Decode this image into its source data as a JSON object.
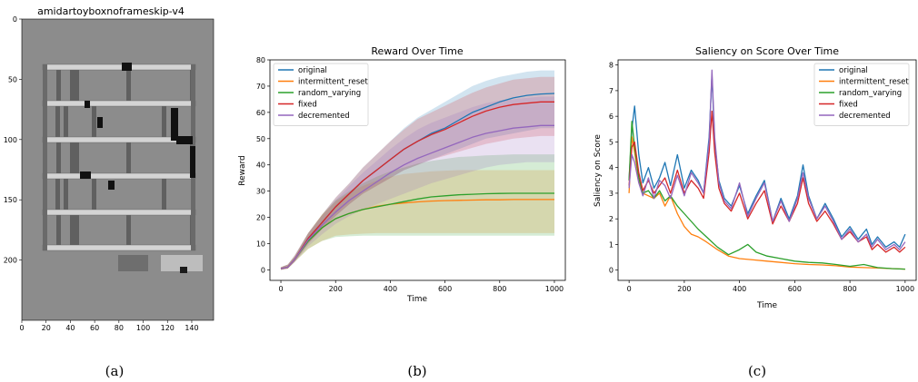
{
  "panel_a": {
    "title": "amidartoyboxnoframeskip-v4",
    "caption": "(a)",
    "xticks": [
      "0",
      "20",
      "40",
      "60",
      "80",
      "100",
      "120",
      "140"
    ],
    "yticks": [
      "0",
      "50",
      "100",
      "150",
      "200"
    ]
  },
  "chart_data": [
    {
      "type": "line",
      "title": "Reward Over Time",
      "caption": "(b)",
      "xlabel": "Time",
      "ylabel": "Reward",
      "xlim": [
        -40,
        1040
      ],
      "ylim": [
        -4,
        80
      ],
      "xticks": [
        0,
        200,
        400,
        600,
        800,
        1000
      ],
      "yticks": [
        0,
        10,
        20,
        30,
        40,
        50,
        60,
        70,
        80
      ],
      "legend_position": "top-left",
      "series": [
        {
          "name": "original",
          "color": "#1f77b4",
          "x": [
            0,
            25,
            50,
            100,
            150,
            200,
            250,
            300,
            350,
            400,
            450,
            500,
            550,
            600,
            650,
            700,
            750,
            800,
            850,
            900,
            950,
            1000
          ],
          "y": [
            0.5,
            1,
            4,
            12,
            18,
            24,
            29,
            34,
            38,
            42,
            46,
            49,
            52,
            54,
            57,
            60,
            62,
            64,
            65.5,
            66.5,
            67,
            67.2
          ],
          "band_low": [
            0,
            0.5,
            3,
            10,
            15.5,
            20.5,
            25,
            29,
            32,
            35,
            38,
            40,
            42,
            44,
            46,
            48,
            50,
            51,
            52,
            53,
            54,
            54
          ],
          "band_high": [
            1,
            2,
            5.5,
            14,
            21,
            27.5,
            33,
            39,
            44,
            49,
            54,
            58,
            61,
            64,
            67,
            70,
            72,
            73.5,
            74.5,
            75.5,
            76,
            76
          ]
        },
        {
          "name": "intermittent_reset",
          "color": "#ff7f0e",
          "x": [
            0,
            25,
            50,
            100,
            150,
            200,
            250,
            300,
            350,
            400,
            450,
            500,
            550,
            600,
            650,
            700,
            750,
            800,
            850,
            900,
            950,
            1000
          ],
          "y": [
            0.5,
            1,
            4,
            11,
            16,
            19.5,
            21.5,
            23,
            24.2,
            25,
            25.5,
            25.9,
            26.2,
            26.4,
            26.5,
            26.6,
            26.7,
            26.7,
            26.8,
            26.8,
            26.8,
            26.8
          ],
          "band_low": [
            0,
            0.5,
            3,
            8,
            11,
            13,
            13.5,
            13.8,
            14,
            14,
            14,
            14,
            14,
            14,
            14,
            14,
            14,
            14,
            14,
            14,
            14,
            14
          ],
          "band_high": [
            1,
            2,
            5,
            14,
            21,
            26,
            29.5,
            32,
            34,
            35.5,
            36.5,
            37,
            37.5,
            37.8,
            38,
            38,
            38,
            38,
            38,
            38,
            38,
            38
          ]
        },
        {
          "name": "random_varying",
          "color": "#2ca02c",
          "x": [
            0,
            25,
            50,
            100,
            150,
            200,
            250,
            300,
            350,
            400,
            450,
            500,
            550,
            600,
            650,
            700,
            750,
            800,
            850,
            900,
            950,
            1000
          ],
          "y": [
            0.5,
            1,
            4,
            11,
            16,
            19.5,
            21.5,
            23,
            24,
            25,
            26,
            27,
            27.8,
            28.2,
            28.6,
            28.8,
            29,
            29.1,
            29.2,
            29.2,
            29.2,
            29.2
          ],
          "band_low": [
            0,
            0.5,
            3,
            8,
            11,
            12.5,
            12.8,
            13,
            13,
            13,
            13,
            13,
            13,
            13,
            13,
            13,
            13,
            13,
            13,
            13,
            13,
            13
          ],
          "band_high": [
            1,
            2,
            5,
            14,
            21,
            26.5,
            30,
            33,
            35.5,
            37.5,
            39,
            40.5,
            41.5,
            42.3,
            43,
            43.3,
            43.6,
            43.8,
            44,
            44,
            44,
            44
          ]
        },
        {
          "name": "fixed",
          "color": "#d62728",
          "x": [
            0,
            25,
            50,
            100,
            150,
            200,
            250,
            300,
            350,
            400,
            450,
            500,
            550,
            600,
            650,
            700,
            750,
            800,
            850,
            900,
            950,
            1000
          ],
          "y": [
            0.5,
            1,
            4,
            12,
            18,
            24,
            29,
            34,
            38,
            42,
            46,
            49,
            51.5,
            53.5,
            56,
            58.5,
            60.5,
            62,
            63,
            63.5,
            64,
            64
          ],
          "band_low": [
            0,
            0.5,
            3,
            10,
            15.5,
            20.5,
            25,
            29,
            32,
            35,
            38,
            40,
            42,
            43.5,
            45,
            46.5,
            48,
            49,
            50,
            50.5,
            51,
            51
          ],
          "band_high": [
            1,
            2,
            5.5,
            14,
            21,
            27.5,
            33,
            39,
            44,
            49,
            53.5,
            57.5,
            60,
            62.5,
            65,
            67.5,
            69.5,
            71,
            72.5,
            73,
            73.5,
            73.5
          ]
        },
        {
          "name": "decremented",
          "color": "#9467bd",
          "x": [
            0,
            25,
            50,
            100,
            150,
            200,
            250,
            300,
            350,
            400,
            450,
            500,
            550,
            600,
            650,
            700,
            750,
            800,
            850,
            900,
            950,
            1000
          ],
          "y": [
            0.5,
            1,
            4,
            11.5,
            17,
            22,
            26.5,
            30,
            33.5,
            37,
            40,
            42.5,
            44.5,
            46.5,
            48.5,
            50.5,
            52,
            53,
            54,
            54.5,
            55,
            55
          ],
          "band_low": [
            0,
            0.5,
            3,
            9,
            13.5,
            17.5,
            20.5,
            23,
            25,
            27,
            29,
            31,
            33,
            34.5,
            36,
            37.5,
            39,
            40,
            40.5,
            41,
            41,
            41
          ],
          "band_high": [
            1,
            2,
            5,
            14,
            20.5,
            26.5,
            32,
            37,
            41.5,
            46,
            50,
            53.5,
            56,
            58,
            60,
            62,
            63.5,
            64.5,
            65,
            65.5,
            66,
            66
          ]
        }
      ]
    },
    {
      "type": "line",
      "title": "Saliency on Score Over Time",
      "caption": "(c)",
      "xlabel": "Time",
      "ylabel": "Saliency on Score",
      "xlim": [
        -40,
        1040
      ],
      "ylim": [
        -0.4,
        8.2
      ],
      "xticks": [
        0,
        200,
        400,
        600,
        800,
        1000
      ],
      "yticks": [
        0,
        1,
        2,
        3,
        4,
        5,
        6,
        7,
        8
      ],
      "legend_position": "top-right",
      "series": [
        {
          "name": "original",
          "color": "#1f77b4",
          "x": [
            0,
            10,
            20,
            35,
            50,
            70,
            90,
            110,
            130,
            150,
            175,
            200,
            225,
            250,
            270,
            290,
            300,
            310,
            325,
            345,
            370,
            400,
            430,
            460,
            490,
            520,
            550,
            580,
            610,
            630,
            650,
            680,
            710,
            740,
            770,
            800,
            830,
            860,
            880,
            900,
            930,
            960,
            980,
            1000
          ],
          "y": [
            3.5,
            5.5,
            6.4,
            4.5,
            3.4,
            4.0,
            3.2,
            3.6,
            4.2,
            3.3,
            4.5,
            3.2,
            3.9,
            3.5,
            3.0,
            5.2,
            7.6,
            5.0,
            3.5,
            2.8,
            2.5,
            3.3,
            2.2,
            2.9,
            3.5,
            1.9,
            2.8,
            2.0,
            2.9,
            4.1,
            2.9,
            2.0,
            2.6,
            2.0,
            1.3,
            1.7,
            1.2,
            1.6,
            1.0,
            1.3,
            0.9,
            1.1,
            0.9,
            1.4
          ]
        },
        {
          "name": "intermittent_reset",
          "color": "#ff7f0e",
          "x": [
            0,
            10,
            20,
            35,
            50,
            70,
            90,
            110,
            130,
            150,
            175,
            200,
            225,
            250,
            280,
            320,
            360,
            400,
            450,
            500,
            550,
            600,
            650,
            700,
            750,
            800,
            850,
            900,
            950,
            1000
          ],
          "y": [
            3.0,
            5.2,
            4.6,
            3.5,
            3.0,
            2.9,
            2.8,
            3.0,
            2.5,
            2.9,
            2.2,
            1.7,
            1.4,
            1.3,
            1.1,
            0.8,
            0.55,
            0.45,
            0.4,
            0.35,
            0.3,
            0.25,
            0.22,
            0.2,
            0.17,
            0.12,
            0.1,
            0.08,
            0.06,
            0.04
          ]
        },
        {
          "name": "random_varying",
          "color": "#2ca02c",
          "x": [
            0,
            10,
            20,
            35,
            50,
            70,
            90,
            110,
            130,
            150,
            175,
            200,
            225,
            250,
            280,
            320,
            360,
            400,
            430,
            460,
            500,
            550,
            600,
            650,
            700,
            750,
            800,
            850,
            900,
            950,
            1000
          ],
          "y": [
            3.5,
            5.8,
            4.8,
            3.6,
            3.0,
            3.1,
            2.8,
            3.1,
            2.7,
            2.9,
            2.5,
            2.2,
            1.9,
            1.6,
            1.3,
            0.9,
            0.6,
            0.8,
            1.0,
            0.7,
            0.55,
            0.45,
            0.35,
            0.3,
            0.28,
            0.22,
            0.15,
            0.22,
            0.1,
            0.06,
            0.04
          ]
        },
        {
          "name": "fixed",
          "color": "#d62728",
          "x": [
            0,
            10,
            20,
            35,
            50,
            70,
            90,
            110,
            130,
            150,
            175,
            200,
            225,
            250,
            270,
            290,
            300,
            310,
            325,
            345,
            370,
            400,
            430,
            460,
            490,
            520,
            550,
            580,
            610,
            630,
            650,
            680,
            710,
            740,
            770,
            800,
            830,
            860,
            880,
            900,
            930,
            960,
            980,
            1000
          ],
          "y": [
            3.3,
            4.8,
            5.0,
            3.8,
            3.1,
            3.5,
            3.0,
            3.3,
            3.6,
            3.0,
            3.9,
            3.0,
            3.5,
            3.2,
            2.8,
            4.6,
            6.2,
            4.6,
            3.2,
            2.6,
            2.3,
            3.0,
            2.0,
            2.6,
            3.1,
            1.8,
            2.5,
            1.9,
            2.6,
            3.6,
            2.6,
            1.9,
            2.3,
            1.8,
            1.2,
            1.5,
            1.1,
            1.3,
            0.8,
            1.0,
            0.7,
            0.9,
            0.7,
            0.9
          ]
        },
        {
          "name": "decremented",
          "color": "#9467bd",
          "x": [
            0,
            10,
            20,
            35,
            50,
            70,
            90,
            110,
            130,
            150,
            175,
            200,
            225,
            250,
            270,
            290,
            300,
            310,
            325,
            345,
            370,
            400,
            430,
            460,
            490,
            520,
            550,
            580,
            610,
            630,
            650,
            680,
            710,
            740,
            770,
            800,
            830,
            860,
            880,
            900,
            930,
            960,
            980,
            1000
          ],
          "y": [
            3.2,
            4.5,
            4.2,
            3.4,
            2.9,
            3.6,
            2.8,
            3.5,
            3.3,
            2.8,
            3.7,
            2.9,
            3.8,
            3.4,
            3.0,
            5.0,
            7.8,
            5.2,
            3.4,
            2.7,
            2.4,
            3.4,
            2.1,
            2.8,
            3.4,
            1.9,
            2.7,
            1.9,
            2.8,
            3.8,
            2.8,
            2.0,
            2.5,
            1.9,
            1.2,
            1.6,
            1.1,
            1.4,
            0.9,
            1.2,
            0.8,
            1.0,
            0.8,
            1.1
          ]
        }
      ]
    }
  ]
}
